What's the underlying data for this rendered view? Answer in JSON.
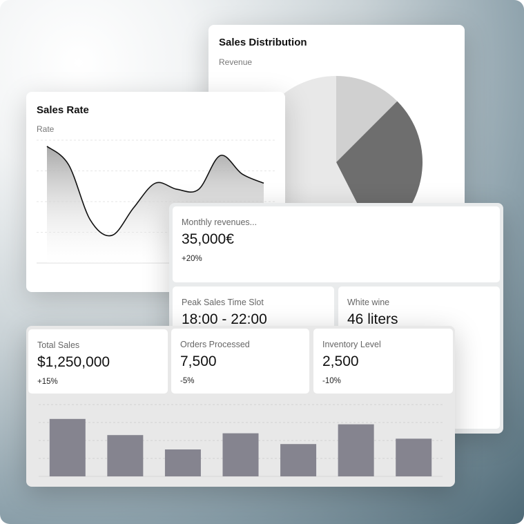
{
  "sales_distribution": {
    "title": "Sales Distribution",
    "subtitle": "Revenue",
    "chart_data": {
      "type": "pie",
      "slices": [
        {
          "value": 12.5,
          "color": "#d0d0d0"
        },
        {
          "value": 30,
          "color": "#6e6e6e"
        },
        {
          "value": 57.5,
          "color": "#e8e8e8"
        }
      ]
    }
  },
  "sales_rate": {
    "title": "Sales Rate",
    "subtitle": "Rate",
    "chart_data": {
      "type": "area",
      "x": [
        0,
        1,
        2,
        3,
        4,
        5,
        6,
        7,
        8,
        9,
        10
      ],
      "values": [
        3.8,
        3.2,
        1.4,
        0.9,
        1.8,
        2.6,
        2.4,
        2.4,
        3.5,
        2.9,
        2.6
      ],
      "ylim": [
        0,
        4
      ],
      "grid": true
    }
  },
  "monthly": {
    "label": "Monthly revenues...",
    "value": "35,000€",
    "change": "+20%"
  },
  "peak": {
    "label": "Peak Sales Time Slot",
    "value": "18:00 - 22:00"
  },
  "wine": {
    "label": "White wine",
    "value": "46 liters"
  },
  "stats": [
    {
      "label": "Total Sales",
      "value": "$1,250,000",
      "change": "+15%"
    },
    {
      "label": "Orders Processed",
      "value": "7,500",
      "change": "-5%"
    },
    {
      "label": "Inventory Level",
      "value": "2,500",
      "change": "-10%"
    }
  ],
  "bar_chart": {
    "chart_data": {
      "type": "bar",
      "values": [
        3.2,
        2.3,
        1.5,
        2.4,
        1.8,
        2.9,
        2.1
      ],
      "ylim": [
        0,
        4
      ],
      "grid": true,
      "color": "#85848f"
    }
  }
}
